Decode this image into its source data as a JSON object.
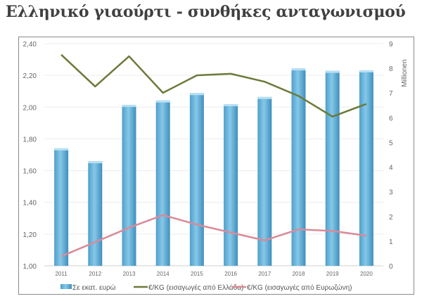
{
  "title": "Ελληνικό γιαούρτι - συνθήκες ανταγωνισμού",
  "chart_data": {
    "type": "bar+line",
    "title": "Ελληνικό γιαούρτι - συνθήκες ανταγωνισμού",
    "categories": [
      "2011",
      "2012",
      "2013",
      "2014",
      "2015",
      "2016",
      "2017",
      "2018",
      "2019",
      "2020"
    ],
    "left_axis": {
      "ylim": [
        1.0,
        2.4
      ],
      "ticks": [
        "1,00",
        "1,20",
        "1,40",
        "1,60",
        "1,80",
        "2,00",
        "2,20",
        "2,40"
      ]
    },
    "right_axis": {
      "label": "Millionen",
      "ylim": [
        0,
        9
      ],
      "ticks": [
        "0",
        "1",
        "2",
        "3",
        "4",
        "5",
        "6",
        "7",
        "8",
        "9"
      ]
    },
    "series": [
      {
        "name": "Σε εκατ. ευρώ",
        "type": "bar",
        "axis": "right",
        "color": "#5aaed8",
        "values": [
          4.76,
          4.24,
          6.52,
          6.7,
          7.0,
          6.55,
          6.84,
          8.0,
          7.9,
          7.92
        ]
      },
      {
        "name": "€/KG (εισαγωγές από Ελλάδα)",
        "type": "line",
        "axis": "left",
        "color": "#6b7a3a",
        "values": [
          2.33,
          2.13,
          2.32,
          2.09,
          2.2,
          2.21,
          2.16,
          2.07,
          1.94,
          2.02
        ]
      },
      {
        "name": "€/KG (εισαγωγές από Ευρωζώνη)",
        "type": "line",
        "axis": "left",
        "color": "#d98a98",
        "values": [
          1.06,
          1.15,
          1.24,
          1.32,
          1.26,
          1.21,
          1.16,
          1.23,
          1.22,
          1.19
        ]
      }
    ],
    "grid": true,
    "legend": "bottom"
  }
}
